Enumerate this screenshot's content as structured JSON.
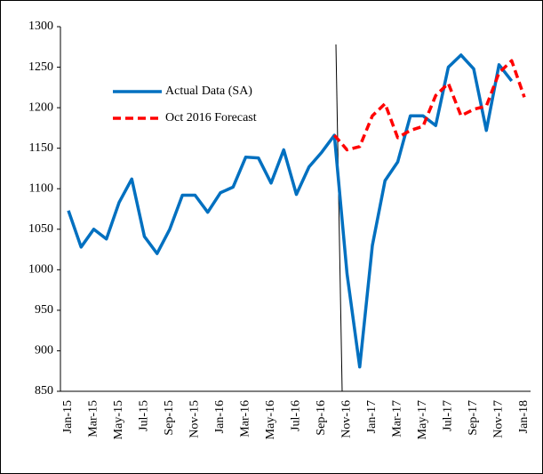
{
  "chart_data": {
    "type": "line",
    "categories": [
      "Jan-15",
      null,
      "Mar-15",
      null,
      "May-15",
      null,
      "Jul-15",
      null,
      "Sep-15",
      null,
      "Nov-15",
      null,
      "Jan-16",
      null,
      "Mar-16",
      null,
      "May-16",
      null,
      "Jul-16",
      null,
      "Sep-16",
      null,
      "Nov-16",
      null,
      "Jan-17",
      null,
      "Mar-17",
      null,
      "May-17",
      null,
      "Jul-17",
      null,
      "Sep-17",
      null,
      "Nov-17",
      null,
      "Jan-18"
    ],
    "series": [
      {
        "name": "Actual Data (SA)",
        "color": "#0070c0",
        "dash": false,
        "values": [
          1073,
          1028,
          1050,
          1038,
          1083,
          1112,
          1041,
          1020,
          1050,
          1092,
          1092,
          1071,
          1095,
          1102,
          1139,
          1138,
          1107,
          1148,
          1093,
          1127,
          1145,
          1166,
          995,
          880,
          1030,
          1110,
          1133,
          1190,
          1190,
          1178,
          1250,
          1265,
          1248,
          1172,
          1253,
          1233,
          null
        ]
      },
      {
        "name": "Oct 2016 Forecast",
        "color": "#ff0000",
        "dash": true,
        "values": [
          null,
          null,
          null,
          null,
          null,
          null,
          null,
          null,
          null,
          null,
          null,
          null,
          null,
          null,
          null,
          null,
          null,
          null,
          null,
          null,
          null,
          1166,
          1148,
          1152,
          1190,
          1205,
          1163,
          1172,
          1177,
          1215,
          1230,
          1190,
          1198,
          1202,
          1243,
          1258,
          1213
        ]
      }
    ],
    "ylim": [
      850,
      1300
    ],
    "yticks": [
      850,
      900,
      950,
      1000,
      1050,
      1100,
      1150,
      1200,
      1250,
      1300
    ],
    "grid": false
  }
}
